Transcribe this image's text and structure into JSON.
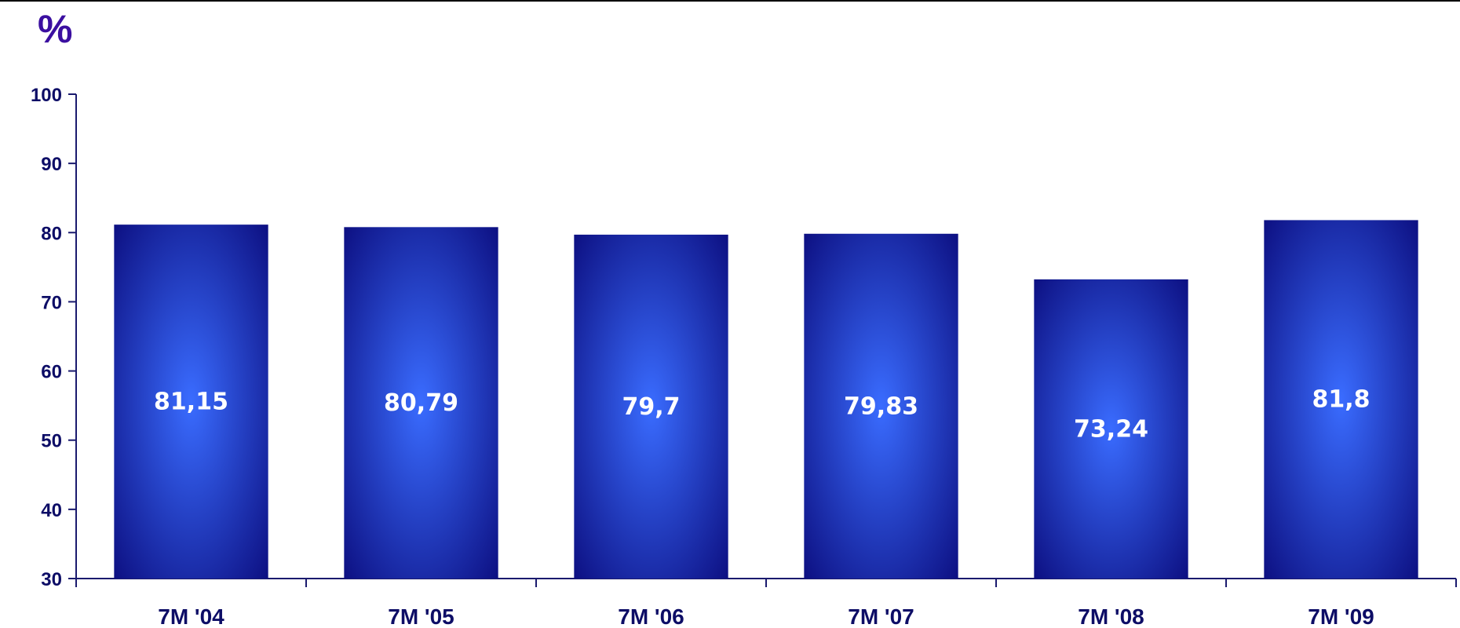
{
  "chart_data": {
    "type": "bar",
    "title": "",
    "ylabel": "%",
    "xlabel": "",
    "categories": [
      "7M '04",
      "7M '05",
      "7M '06",
      "7M '07",
      "7M '08",
      "7M '09"
    ],
    "values": [
      81.15,
      80.79,
      79.7,
      79.83,
      73.24,
      81.8
    ],
    "value_labels": [
      "81,15",
      "80,79",
      "79,7",
      "79,83",
      "73,24",
      "81,8"
    ],
    "ylim": [
      30,
      100
    ],
    "yticks": [
      "30",
      "40",
      "50",
      "60",
      "70",
      "80",
      "90",
      "100"
    ],
    "grid": false,
    "legend": "none"
  },
  "colors": {
    "bar_edge": "#0a0a7a",
    "bar_center": "#3a6cff",
    "axis": "#1a1a6e",
    "text": "#0d0d66",
    "unit": "#3b0fa0"
  }
}
